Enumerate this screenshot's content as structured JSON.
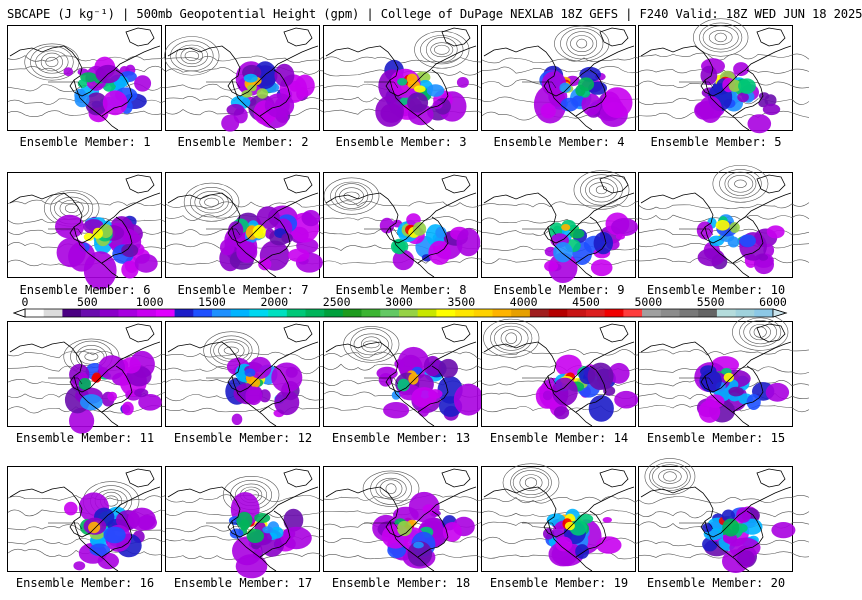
{
  "title": "SBCAPE (J kg⁻¹) | 500mb Geopotential Height (gpm) | College of DuPage NEXLAB 18Z GEFS | F240 Valid: 18Z WED JUN 18 2025",
  "colorbar": {
    "labels": [
      "0",
      "500",
      "1000",
      "1500",
      "2000",
      "2500",
      "3000",
      "3500",
      "4000",
      "4500",
      "5000",
      "5500",
      "6000"
    ],
    "colors": [
      "#ffffff",
      "#dcdcdc",
      "#4b0082",
      "#6a0dad",
      "#8b00c9",
      "#a800e0",
      "#c800f0",
      "#e000ff",
      "#1c1cc8",
      "#1e50ff",
      "#1e90ff",
      "#00b4ff",
      "#00d8f0",
      "#00e0c0",
      "#00c878",
      "#00b45a",
      "#00a03c",
      "#1e9b1e",
      "#3cb432",
      "#64c864",
      "#96d246",
      "#c8e600",
      "#ffff00",
      "#ffe600",
      "#ffd200",
      "#ffb400",
      "#e6a000",
      "#a01e1e",
      "#b40000",
      "#c81414",
      "#dc1e1e",
      "#f00000",
      "#ff3c3c",
      "#a0a0a0",
      "#8c8c8c",
      "#787878",
      "#646464",
      "#b4dcdc",
      "#a0d2dc",
      "#8cc8e6"
    ]
  },
  "members": [
    {
      "caption": "Ensemble Member: 1"
    },
    {
      "caption": "Ensemble Member: 2"
    },
    {
      "caption": "Ensemble Member: 3"
    },
    {
      "caption": "Ensemble Member: 4"
    },
    {
      "caption": "Ensemble Member: 5"
    },
    {
      "caption": "Ensemble Member: 6"
    },
    {
      "caption": "Ensemble Member: 7"
    },
    {
      "caption": "Ensemble Member: 8"
    },
    {
      "caption": "Ensemble Member: 9"
    },
    {
      "caption": "Ensemble Member: 10"
    },
    {
      "caption": "Ensemble Member: 11"
    },
    {
      "caption": "Ensemble Member: 12"
    },
    {
      "caption": "Ensemble Member: 13"
    },
    {
      "caption": "Ensemble Member: 14"
    },
    {
      "caption": "Ensemble Member: 15"
    },
    {
      "caption": "Ensemble Member: 16"
    },
    {
      "caption": "Ensemble Member: 17"
    },
    {
      "caption": "Ensemble Member: 18"
    },
    {
      "caption": "Ensemble Member: 19"
    },
    {
      "caption": "Ensemble Member: 20"
    }
  ]
}
